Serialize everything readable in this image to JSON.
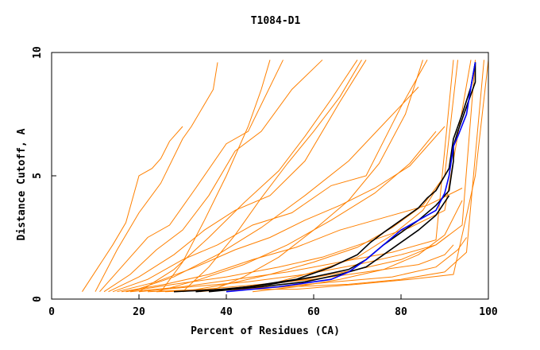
{
  "chart_data": {
    "type": "line",
    "title": "T1084-D1",
    "xlabel": "Percent of Residues (CA)",
    "ylabel": "Distance Cutoff, A",
    "xlim": [
      0,
      100
    ],
    "ylim": [
      0,
      10
    ],
    "x_ticks": [
      "0",
      "20",
      "40",
      "60",
      "80",
      "100"
    ],
    "y_ticks": [
      "0",
      "5",
      "10"
    ],
    "grid": false,
    "legend": "none",
    "colors": {
      "models": "#ff8000",
      "highlight_black": "#000000",
      "highlight_blue": "#0000ff"
    },
    "series": [
      {
        "color": "#ff8000",
        "x": [
          7,
          14,
          17,
          20,
          23,
          25,
          27,
          30
        ],
        "y": [
          0.3,
          2.2,
          3.1,
          5.0,
          5.3,
          5.7,
          6.4,
          7.0
        ]
      },
      {
        "color": "#ff8000",
        "x": [
          10,
          15,
          20,
          25,
          30,
          32,
          37,
          38
        ],
        "y": [
          0.3,
          2.0,
          3.5,
          4.7,
          6.5,
          7.0,
          8.5,
          9.6
        ]
      },
      {
        "color": "#ff8000",
        "x": [
          11,
          16,
          22,
          27,
          33,
          40,
          45,
          53
        ],
        "y": [
          0.3,
          1.3,
          2.5,
          3.0,
          4.5,
          6.3,
          6.8,
          9.7
        ]
      },
      {
        "color": "#ff8000",
        "x": [
          12,
          18,
          24,
          30,
          36,
          42,
          48,
          55,
          62
        ],
        "y": [
          0.3,
          1.0,
          2.0,
          2.8,
          4.2,
          6.0,
          6.8,
          8.5,
          9.7
        ]
      },
      {
        "color": "#ff8000",
        "x": [
          13,
          20,
          28,
          35,
          42,
          50,
          58,
          66,
          72
        ],
        "y": [
          0.3,
          0.9,
          1.8,
          2.8,
          3.6,
          4.2,
          5.6,
          8.0,
          9.7
        ]
      },
      {
        "color": "#ff8000",
        "x": [
          14,
          22,
          30,
          38,
          46,
          55,
          64,
          72,
          80,
          86
        ],
        "y": [
          0.3,
          0.8,
          1.6,
          2.2,
          3.0,
          3.5,
          4.6,
          5.0,
          7.8,
          9.7
        ]
      },
      {
        "color": "#ff8000",
        "x": [
          15,
          24,
          33,
          42,
          50,
          58,
          66,
          74,
          82,
          90
        ],
        "y": [
          0.3,
          0.7,
          1.3,
          2.0,
          2.5,
          3.2,
          3.8,
          4.5,
          5.4,
          7.0
        ]
      },
      {
        "color": "#ff8000",
        "x": [
          16,
          26,
          36,
          46,
          56,
          66,
          76,
          86,
          94
        ],
        "y": [
          0.3,
          0.6,
          1.0,
          1.6,
          2.1,
          2.8,
          3.3,
          3.8,
          4.5
        ]
      },
      {
        "color": "#ff8000",
        "x": [
          17,
          28,
          40,
          52,
          62,
          72,
          82,
          90,
          96
        ],
        "y": [
          0.3,
          0.6,
          0.9,
          1.3,
          1.7,
          2.3,
          2.9,
          3.6,
          9.7
        ]
      },
      {
        "color": "#ff8000",
        "x": [
          18,
          30,
          42,
          54,
          66,
          78,
          88,
          92
        ],
        "y": [
          0.3,
          0.5,
          0.8,
          1.1,
          1.5,
          1.9,
          2.4,
          9.7
        ]
      },
      {
        "color": "#ff8000",
        "x": [
          20,
          32,
          45,
          58,
          70,
          80,
          88,
          91
        ],
        "y": [
          0.3,
          0.5,
          0.7,
          1.0,
          1.4,
          1.8,
          2.2,
          2.6
        ]
      },
      {
        "color": "#ff8000",
        "x": [
          22,
          35,
          48,
          60,
          72,
          84,
          90,
          92
        ],
        "y": [
          0.3,
          0.4,
          0.6,
          0.8,
          1.1,
          1.4,
          1.8,
          2.2
        ]
      },
      {
        "color": "#ff8000",
        "x": [
          24,
          38,
          52,
          65,
          78,
          88,
          93,
          95
        ],
        "y": [
          0.3,
          0.4,
          0.5,
          0.7,
          0.9,
          1.3,
          2.0,
          2.5
        ]
      },
      {
        "color": "#ff8000",
        "x": [
          26,
          40,
          55,
          68,
          80,
          90,
          95,
          99
        ],
        "y": [
          0.3,
          0.4,
          0.5,
          0.6,
          0.8,
          1.1,
          1.9,
          9.7
        ]
      },
      {
        "color": "#ff8000",
        "x": [
          28,
          42,
          56,
          70,
          82,
          92,
          97,
          100
        ],
        "y": [
          0.3,
          0.4,
          0.4,
          0.6,
          0.8,
          1.0,
          5.0,
          9.7
        ]
      },
      {
        "color": "#ff8000",
        "x": [
          18,
          28,
          38,
          48,
          58,
          68,
          76,
          84
        ],
        "y": [
          0.3,
          0.9,
          1.8,
          2.9,
          4.2,
          5.6,
          7.1,
          8.6
        ]
      },
      {
        "color": "#ff8000",
        "x": [
          20,
          28,
          36,
          44,
          52,
          58,
          64,
          70
        ],
        "y": [
          0.3,
          1.2,
          2.5,
          3.9,
          5.2,
          6.6,
          8.1,
          9.7
        ]
      },
      {
        "color": "#ff8000",
        "x": [
          24,
          34,
          44,
          54,
          64,
          74,
          82,
          88
        ],
        "y": [
          0.3,
          0.8,
          1.4,
          2.2,
          3.2,
          4.3,
          5.5,
          6.8
        ]
      },
      {
        "color": "#ff8000",
        "x": [
          30,
          40,
          50,
          60,
          70,
          78,
          85,
          90
        ],
        "y": [
          0.3,
          0.6,
          1.0,
          1.5,
          2.1,
          2.9,
          3.8,
          5.0
        ]
      },
      {
        "color": "#ff8000",
        "x": [
          34,
          46,
          58,
          70,
          80,
          88,
          94,
          97
        ],
        "y": [
          0.3,
          0.5,
          0.8,
          1.2,
          1.6,
          2.2,
          3.0,
          9.7
        ]
      },
      {
        "color": "#ff8000",
        "x": [
          25,
          30,
          35,
          40,
          45,
          48,
          50
        ],
        "y": [
          0.3,
          1.5,
          3.2,
          5.0,
          7.0,
          8.5,
          9.7
        ]
      },
      {
        "color": "#ff8000",
        "x": [
          30,
          36,
          42,
          48,
          54,
          60,
          66,
          71
        ],
        "y": [
          0.3,
          1.3,
          2.6,
          4.1,
          5.5,
          6.8,
          8.2,
          9.7
        ]
      },
      {
        "color": "#ff8000",
        "x": [
          36,
          44,
          52,
          60,
          68,
          75,
          81,
          85
        ],
        "y": [
          0.3,
          0.9,
          1.7,
          2.8,
          4.0,
          5.5,
          7.5,
          9.7
        ]
      },
      {
        "color": "#ff8000",
        "x": [
          40,
          50,
          60,
          70,
          78,
          85,
          90,
          93
        ],
        "y": [
          0.3,
          0.6,
          1.1,
          1.7,
          2.6,
          3.6,
          5.0,
          9.7
        ]
      },
      {
        "color": "#ff8000",
        "x": [
          46,
          56,
          66,
          76,
          84,
          90,
          94
        ],
        "y": [
          0.3,
          0.5,
          0.8,
          1.2,
          1.8,
          2.6,
          4.0
        ]
      },
      {
        "color": "#000000",
        "x": [
          28,
          40,
          50,
          60,
          68,
          72,
          76,
          80,
          84,
          88,
          91,
          92,
          92,
          93,
          95,
          97,
          97
        ],
        "y": [
          0.3,
          0.4,
          0.6,
          0.9,
          1.2,
          1.6,
          2.2,
          2.7,
          3.2,
          3.8,
          4.4,
          5.6,
          6.2,
          6.8,
          7.8,
          8.8,
          9.6
        ]
      },
      {
        "color": "#000000",
        "x": [
          33,
          45,
          56,
          64,
          70,
          73,
          76,
          80,
          84,
          86,
          88,
          91,
          92,
          94,
          96,
          97
        ],
        "y": [
          0.3,
          0.5,
          0.8,
          1.3,
          1.8,
          2.3,
          2.7,
          3.2,
          3.7,
          4.1,
          4.4,
          5.3,
          6.5,
          7.5,
          8.6,
          9.6
        ]
      },
      {
        "color": "#000000",
        "x": [
          36,
          48,
          58,
          66,
          72,
          76,
          80,
          84,
          88,
          91
        ],
        "y": [
          0.3,
          0.5,
          0.7,
          1.0,
          1.3,
          1.8,
          2.3,
          2.8,
          3.4,
          4.2
        ]
      },
      {
        "color": "#0000ff",
        "x": [
          40,
          52,
          60,
          64,
          68,
          72,
          76,
          80,
          84,
          88,
          90,
          91,
          92,
          93,
          95,
          96,
          97
        ],
        "y": [
          0.3,
          0.5,
          0.7,
          0.8,
          1.1,
          1.6,
          2.2,
          2.8,
          3.2,
          3.6,
          4.3,
          5.0,
          6.2,
          6.6,
          7.5,
          8.6,
          9.6
        ]
      }
    ]
  }
}
